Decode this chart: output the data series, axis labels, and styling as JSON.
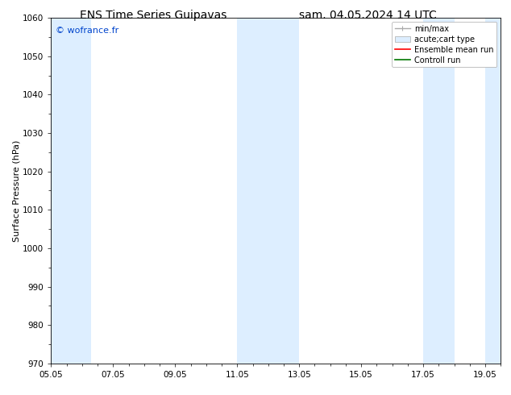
{
  "title_left": "ENS Time Series Guipavas",
  "title_right": "sam. 04.05.2024 14 UTC",
  "ylabel": "Surface Pressure (hPa)",
  "ylim": [
    970,
    1060
  ],
  "yticks": [
    970,
    980,
    990,
    1000,
    1010,
    1020,
    1030,
    1040,
    1050,
    1060
  ],
  "xlim": [
    0,
    14.5
  ],
  "xtick_positions": [
    0,
    2,
    4,
    6,
    8,
    10,
    12,
    14
  ],
  "xtick_labels": [
    "05.05",
    "07.05",
    "09.05",
    "11.05",
    "13.05",
    "15.05",
    "17.05",
    "19.05"
  ],
  "watermark": "© wofrance.fr",
  "watermark_color": "#0044cc",
  "bg_color": "#ffffff",
  "plot_bg_color": "#ffffff",
  "shaded_bands": [
    {
      "x_start": 0.0,
      "x_end": 1.3,
      "color": "#ddeeff"
    },
    {
      "x_start": 6.0,
      "x_end": 8.0,
      "color": "#ddeeff"
    },
    {
      "x_start": 12.0,
      "x_end": 13.0,
      "color": "#ddeeff"
    },
    {
      "x_start": 14.0,
      "x_end": 14.5,
      "color": "#ddeeff"
    }
  ],
  "legend_entries": [
    {
      "label": "min/max",
      "type": "minmax",
      "color": "#aaaaaa"
    },
    {
      "label": "acute;cart type",
      "type": "box",
      "color": "#ddeeff"
    },
    {
      "label": "Ensemble mean run",
      "type": "line",
      "color": "#ff0000"
    },
    {
      "label": "Controll run",
      "type": "line",
      "color": "#007700"
    }
  ],
  "title_fontsize": 10,
  "tick_fontsize": 7.5,
  "ylabel_fontsize": 8,
  "legend_fontsize": 7,
  "watermark_fontsize": 8
}
